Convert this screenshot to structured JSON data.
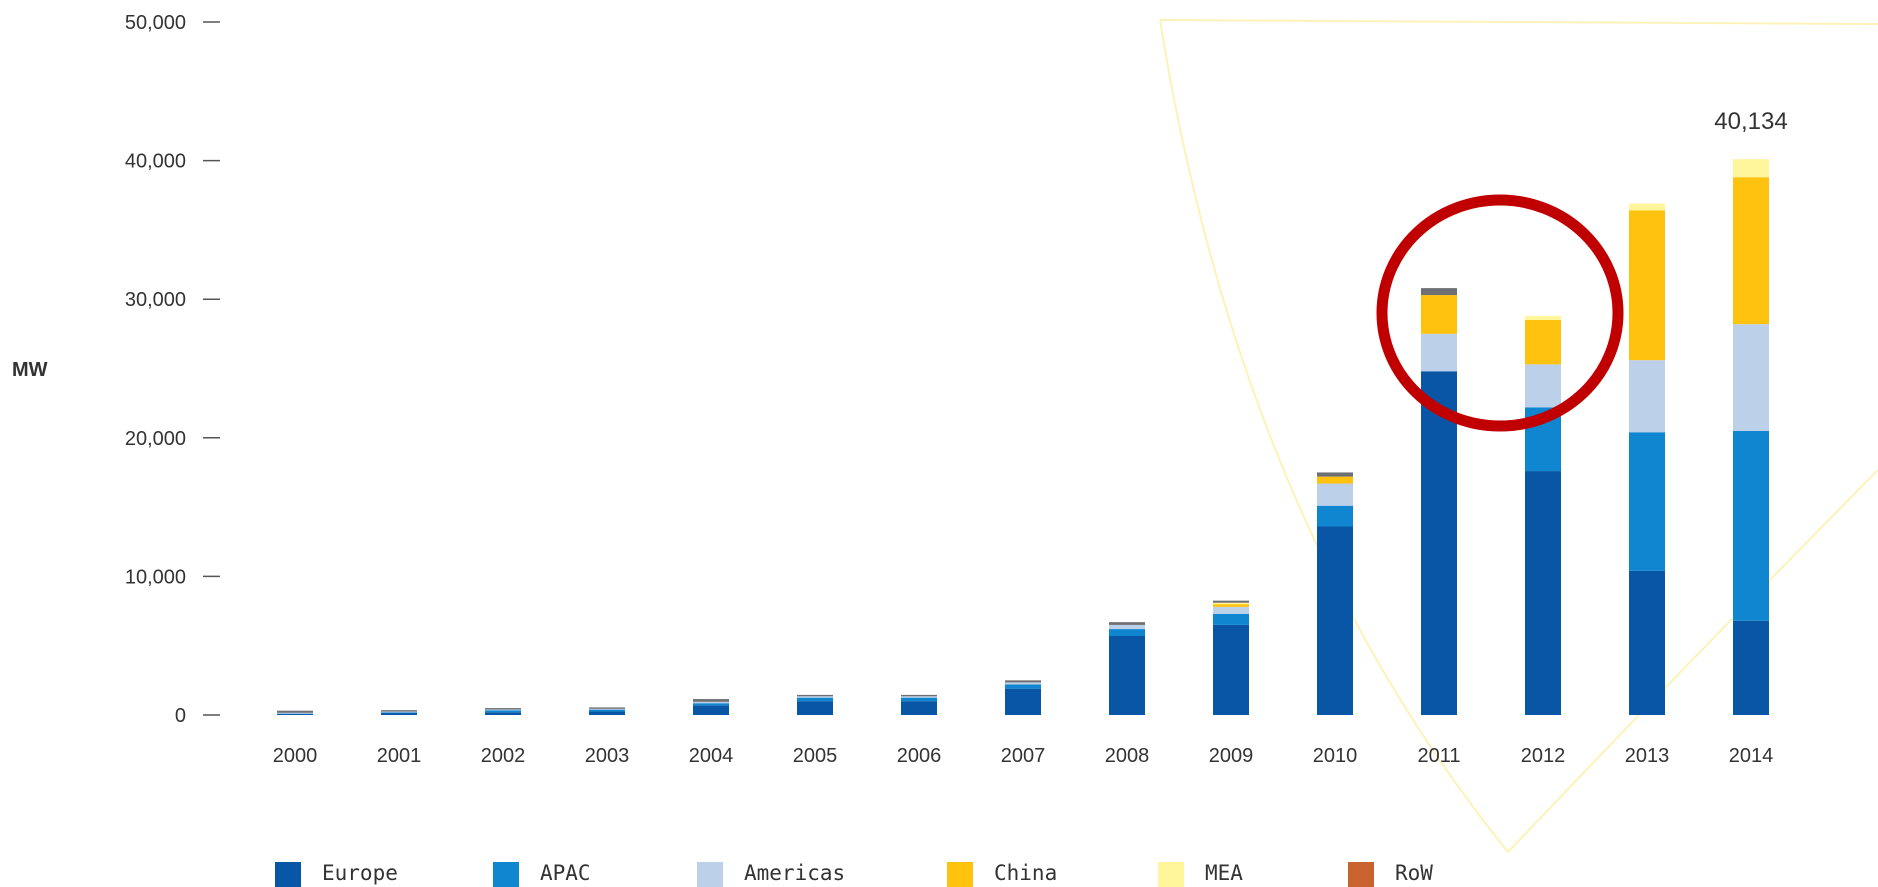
{
  "chart_data": {
    "type": "bar",
    "stacked": true,
    "ylabel": "MW",
    "ylim": [
      0,
      50000
    ],
    "yticks": [
      0,
      10000,
      20000,
      30000,
      40000,
      50000
    ],
    "ytick_labels": [
      "0",
      "10,000",
      "20,000",
      "30,000",
      "40,000",
      "50,000"
    ],
    "categories": [
      "2000",
      "2001",
      "2002",
      "2003",
      "2004",
      "2005",
      "2006",
      "2007",
      "2008",
      "2009",
      "2010",
      "2011",
      "2012",
      "2013",
      "2014"
    ],
    "series": [
      {
        "name": "Europe",
        "color": "#0a56a6",
        "values": [
          100,
          150,
          200,
          250,
          700,
          1000,
          1000,
          1900,
          5700,
          6500,
          13600,
          24800,
          17600,
          10400,
          6800
        ]
      },
      {
        "name": "APAC",
        "color": "#0f86cf",
        "values": [
          30,
          50,
          150,
          150,
          150,
          250,
          250,
          300,
          500,
          800,
          1500,
          0,
          4600,
          10000,
          13700
        ]
      },
      {
        "name": "Americas",
        "color": "#bcd0ea",
        "values": [
          30,
          50,
          50,
          50,
          100,
          100,
          100,
          150,
          300,
          500,
          1600,
          2700,
          3100,
          5200,
          7700
        ]
      },
      {
        "name": "China",
        "color": "#ffc20f",
        "values": [
          0,
          0,
          0,
          0,
          0,
          0,
          0,
          0,
          0,
          200,
          500,
          2800,
          3200,
          10800,
          10600
        ]
      },
      {
        "name": "MEA",
        "color": "#fff59a",
        "values": [
          0,
          0,
          0,
          0,
          0,
          0,
          0,
          0,
          0,
          100,
          0,
          0,
          300,
          500,
          1300
        ]
      },
      {
        "name": "RoW",
        "color": "#c8622f",
        "values": [
          0,
          0,
          0,
          0,
          0,
          0,
          0,
          0,
          0,
          0,
          0,
          0,
          0,
          0,
          0
        ]
      },
      {
        "name": "",
        "color": "#6e7074",
        "values": [
          150,
          100,
          100,
          100,
          200,
          100,
          100,
          150,
          200,
          150,
          300,
          500,
          0,
          0,
          0
        ]
      }
    ],
    "annotations": [
      {
        "category": "2014",
        "text": "40,134"
      }
    ],
    "legend_position": "bottom",
    "grid": false
  }
}
